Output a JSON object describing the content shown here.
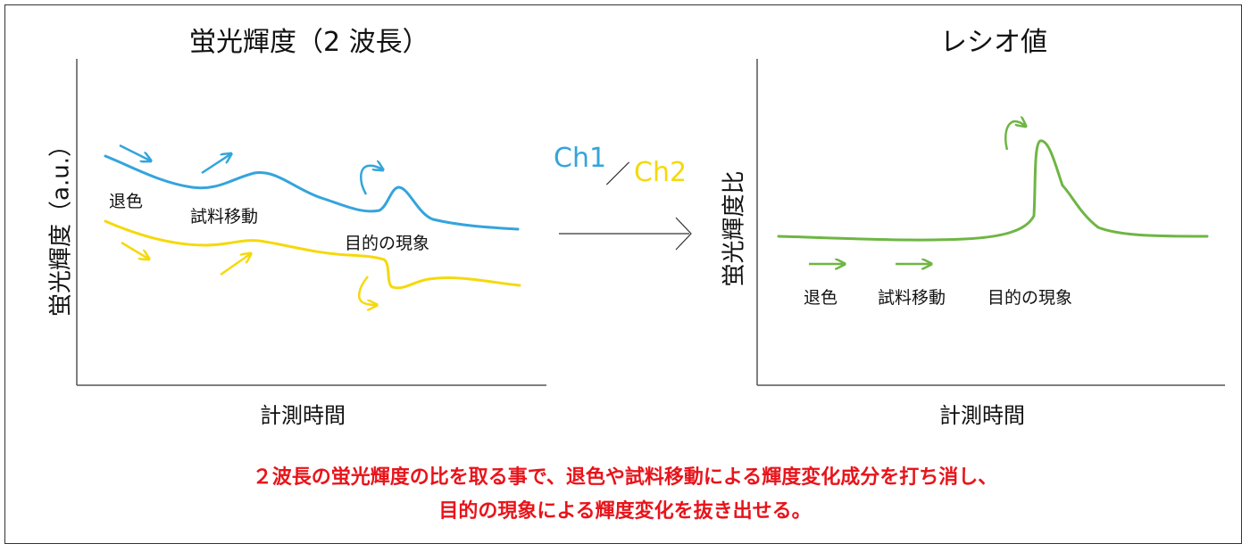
{
  "colors": {
    "ch1": "#34a4dc",
    "ch2": "#f5d90a",
    "ratio": "#6eb643",
    "caption": "#e8141b",
    "axis": "#555555"
  },
  "left_panel": {
    "title": "蛍光輝度（2 波長）",
    "ylabel": "蛍光輝度（a.u.）",
    "xlabel": "計測時間",
    "labels": {
      "fading": "退色",
      "sample_movement": "試料移動",
      "target_phenomenon": "目的の現象"
    },
    "series": [
      {
        "name": "Ch1",
        "color_key": "ch1"
      },
      {
        "name": "Ch2",
        "color_key": "ch2"
      }
    ]
  },
  "ratio_op": {
    "numerator": "Ch1",
    "separator": "／",
    "denominator": "Ch2"
  },
  "right_panel": {
    "title": "レシオ値",
    "ylabel": "蛍光輝度比",
    "xlabel": "計測時間",
    "labels": {
      "fading": "退色",
      "sample_movement": "試料移動",
      "target_phenomenon": "目的の現象"
    }
  },
  "caption": {
    "line1": "２波長の蛍光輝度の比を取る事で、退色や試料移動による輝度変化成分を打ち消し、",
    "line2": "目的の現象による輝度変化を抜き出せる。"
  }
}
